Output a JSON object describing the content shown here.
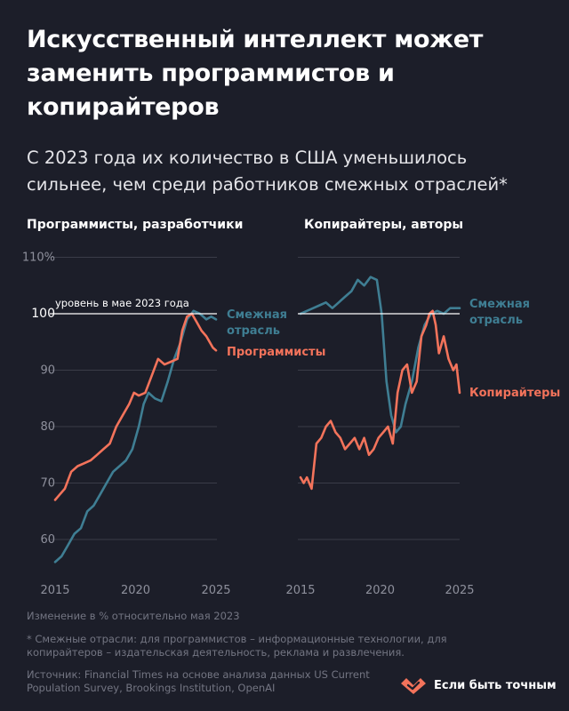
{
  "header": {
    "title": "Искусственный интеллект может заменить программистов и копирайтеров",
    "subtitle": "С 2023 года их количество в США уменьшилось сильнее, чем среди работников смежных отраслей*"
  },
  "chart_data": [
    {
      "type": "line",
      "title": "Программисты, разработчики",
      "xlim": [
        2015,
        2025
      ],
      "ylim": [
        55,
        110
      ],
      "x_ticks": [
        "2015",
        "2020",
        "2025"
      ],
      "y_ticks": [
        "60",
        "70",
        "80",
        "90",
        "100",
        "110%"
      ],
      "grid": true,
      "reference_line": {
        "value": 100,
        "label": "уровень в мае 2023 года"
      },
      "series": [
        {
          "name": "Смежная отрасль",
          "color": "#3f7e93",
          "points": [
            [
              2015.0,
              56
            ],
            [
              2015.4,
              57
            ],
            [
              2015.8,
              59
            ],
            [
              2016.2,
              61
            ],
            [
              2016.6,
              62
            ],
            [
              2017.0,
              65
            ],
            [
              2017.4,
              66
            ],
            [
              2017.8,
              68
            ],
            [
              2018.2,
              70
            ],
            [
              2018.6,
              72
            ],
            [
              2019.0,
              73
            ],
            [
              2019.4,
              74
            ],
            [
              2019.8,
              76
            ],
            [
              2020.2,
              80
            ],
            [
              2020.5,
              84
            ],
            [
              2020.8,
              86
            ],
            [
              2021.2,
              85
            ],
            [
              2021.6,
              84.5
            ],
            [
              2022.0,
              88
            ],
            [
              2022.4,
              92
            ],
            [
              2022.8,
              95
            ],
            [
              2023.2,
              99
            ],
            [
              2023.6,
              100.5
            ],
            [
              2024.0,
              100
            ],
            [
              2024.4,
              99
            ],
            [
              2024.7,
              99.5
            ],
            [
              2025.0,
              99
            ]
          ]
        },
        {
          "name": "Программисты",
          "color": "#f3735b",
          "points": [
            [
              2015.0,
              67
            ],
            [
              2015.3,
              68
            ],
            [
              2015.6,
              69
            ],
            [
              2016.0,
              72
            ],
            [
              2016.4,
              73
            ],
            [
              2016.8,
              73.5
            ],
            [
              2017.2,
              74
            ],
            [
              2017.6,
              75
            ],
            [
              2018.0,
              76
            ],
            [
              2018.4,
              77
            ],
            [
              2018.8,
              80
            ],
            [
              2019.2,
              82
            ],
            [
              2019.6,
              84
            ],
            [
              2019.9,
              86
            ],
            [
              2020.2,
              85.5
            ],
            [
              2020.6,
              86
            ],
            [
              2021.0,
              89
            ],
            [
              2021.4,
              92
            ],
            [
              2021.8,
              91
            ],
            [
              2022.2,
              91.5
            ],
            [
              2022.6,
              92
            ],
            [
              2022.9,
              97
            ],
            [
              2023.2,
              99.5
            ],
            [
              2023.5,
              100
            ],
            [
              2023.8,
              98.5
            ],
            [
              2024.1,
              97
            ],
            [
              2024.4,
              96
            ],
            [
              2024.6,
              95
            ],
            [
              2024.8,
              94
            ],
            [
              2025.0,
              93.5
            ]
          ]
        }
      ],
      "series_labels": [
        "Смежная отрасль",
        "Программисты"
      ]
    },
    {
      "type": "line",
      "title": "Копирайтеры, авторы",
      "xlim": [
        2015,
        2025
      ],
      "ylim": [
        55,
        110
      ],
      "x_ticks": [
        "2015",
        "2020",
        "2025"
      ],
      "grid": true,
      "reference_line": {
        "value": 100
      },
      "series": [
        {
          "name": "Смежная отрасль",
          "color": "#3f7e93",
          "points": [
            [
              2015.0,
              100
            ],
            [
              2015.4,
              100.5
            ],
            [
              2015.8,
              101
            ],
            [
              2016.2,
              101.5
            ],
            [
              2016.6,
              102
            ],
            [
              2017.0,
              101
            ],
            [
              2017.4,
              102
            ],
            [
              2017.8,
              103
            ],
            [
              2018.2,
              104
            ],
            [
              2018.6,
              106
            ],
            [
              2019.0,
              105
            ],
            [
              2019.4,
              106.5
            ],
            [
              2019.8,
              106
            ],
            [
              2020.1,
              100
            ],
            [
              2020.4,
              88
            ],
            [
              2020.7,
              82
            ],
            [
              2021.0,
              79
            ],
            [
              2021.3,
              80
            ],
            [
              2021.6,
              84
            ],
            [
              2022.0,
              88
            ],
            [
              2022.4,
              94
            ],
            [
              2022.8,
              98
            ],
            [
              2023.2,
              100
            ],
            [
              2023.6,
              100.5
            ],
            [
              2024.0,
              100
            ],
            [
              2024.4,
              101
            ],
            [
              2025.0,
              101
            ]
          ]
        },
        {
          "name": "Копирайтеры",
          "color": "#f3735b",
          "points": [
            [
              2015.0,
              71
            ],
            [
              2015.2,
              70
            ],
            [
              2015.4,
              71
            ],
            [
              2015.7,
              69
            ],
            [
              2016.0,
              77
            ],
            [
              2016.3,
              78
            ],
            [
              2016.6,
              80
            ],
            [
              2016.9,
              81
            ],
            [
              2017.2,
              79
            ],
            [
              2017.5,
              78
            ],
            [
              2017.8,
              76
            ],
            [
              2018.1,
              77
            ],
            [
              2018.4,
              78
            ],
            [
              2018.7,
              76
            ],
            [
              2019.0,
              78
            ],
            [
              2019.3,
              75
            ],
            [
              2019.6,
              76
            ],
            [
              2019.9,
              78
            ],
            [
              2020.2,
              79
            ],
            [
              2020.5,
              80
            ],
            [
              2020.8,
              77
            ],
            [
              2021.1,
              86
            ],
            [
              2021.4,
              90
            ],
            [
              2021.7,
              91
            ],
            [
              2022.0,
              86
            ],
            [
              2022.3,
              88
            ],
            [
              2022.6,
              96
            ],
            [
              2022.9,
              98
            ],
            [
              2023.1,
              100
            ],
            [
              2023.3,
              100.5
            ],
            [
              2023.5,
              98
            ],
            [
              2023.7,
              93
            ],
            [
              2024.0,
              96
            ],
            [
              2024.3,
              92
            ],
            [
              2024.6,
              90
            ],
            [
              2024.8,
              91
            ],
            [
              2025.0,
              86
            ]
          ]
        }
      ],
      "series_labels": [
        "Смежная отрасль",
        "Копирайтеры"
      ]
    }
  ],
  "footer": {
    "unit_note": "Изменение в % относительно мая 2023",
    "footnote": "* Смежные отрасли: для программистов – информационные технологии, для копирайтеров – издательская деятельность, реклама и развлечения.",
    "source": "Источник: Financial Times на основе анализа данных US Current Population Survey, Brookings Institution, OpenAI"
  },
  "brand": {
    "name": "Если быть точным",
    "logo_icon": "heart-check-logo-icon",
    "logo_color": "#f3735b"
  },
  "colors": {
    "background": "#1c1e29",
    "related_industry": "#3f7e93",
    "occupation": "#f3735b",
    "grid": "#3a3c48",
    "axis_text": "#8e909c"
  }
}
